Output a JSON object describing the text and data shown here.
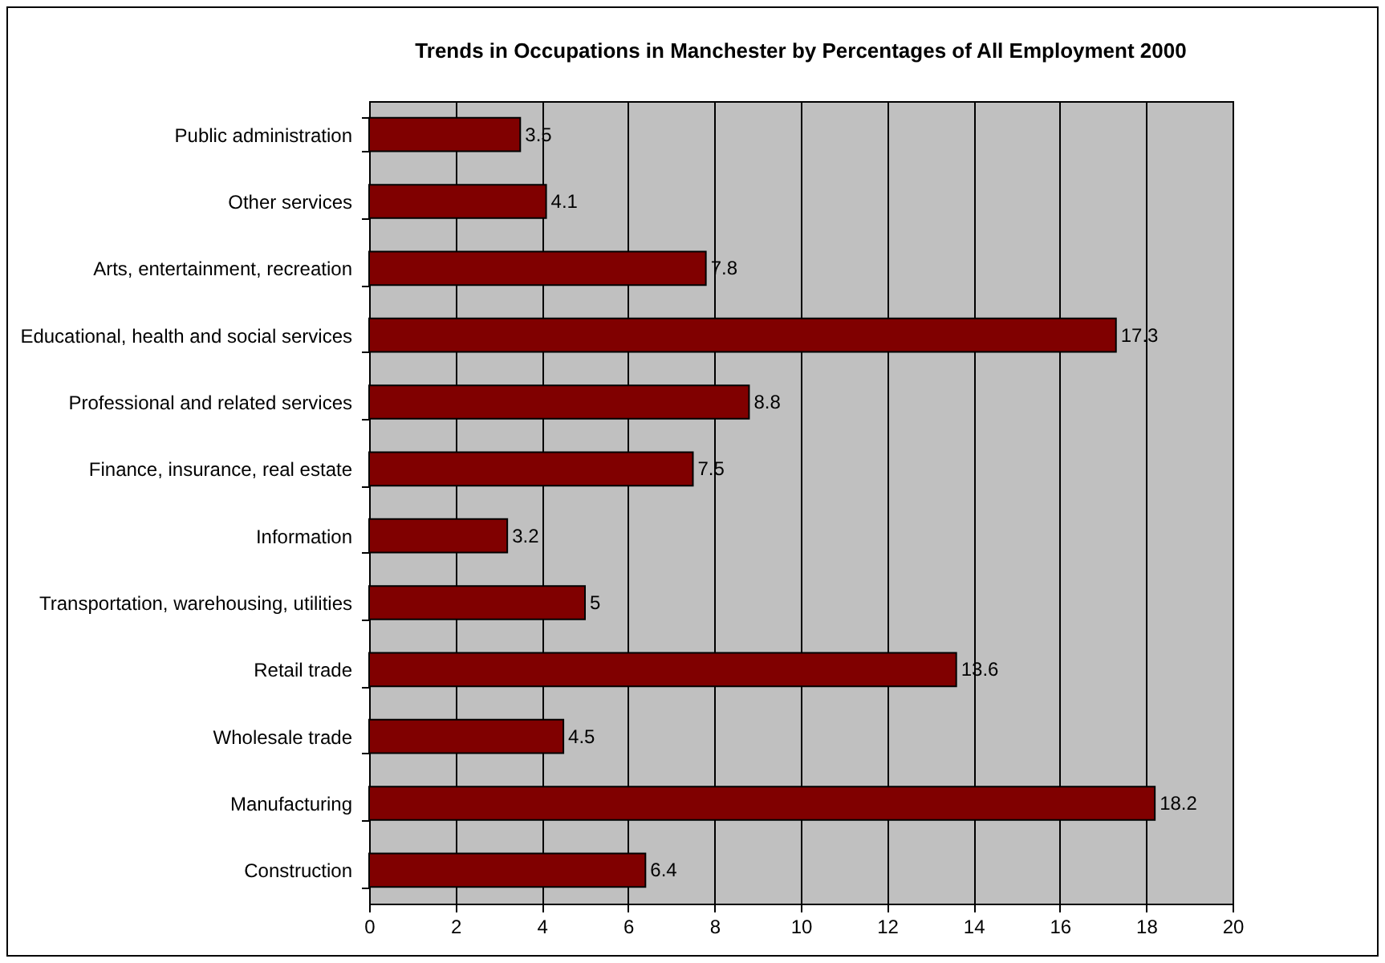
{
  "chart_data": {
    "type": "bar",
    "orientation": "horizontal",
    "title": "Trends in Occupations in Manchester by Percentages of All Employment 2000",
    "categories": [
      "Public administration",
      "Other services",
      "Arts, entertainment, recreation",
      "Educational, health and social services",
      "Professional and related services",
      "Finance, insurance, real estate",
      "Information",
      "Transportation, warehousing, utilities",
      "Retail trade",
      "Wholesale trade",
      "Manufacturing",
      "Construction"
    ],
    "values": [
      3.5,
      4.1,
      7.8,
      17.3,
      8.8,
      7.5,
      3.2,
      5,
      13.6,
      4.5,
      18.2,
      6.4
    ],
    "color": "#800000",
    "xlim": [
      0,
      20
    ],
    "xticks": [
      0,
      2,
      4,
      6,
      8,
      10,
      12,
      14,
      16,
      18,
      20
    ],
    "grid": "x",
    "data_labels": true
  }
}
